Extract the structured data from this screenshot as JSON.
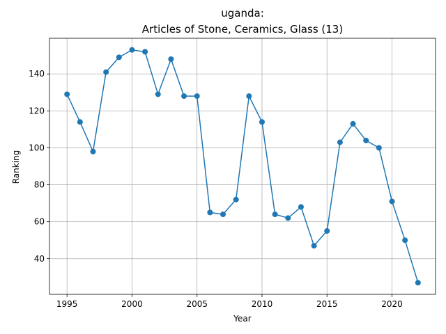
{
  "chart_data": {
    "type": "line",
    "title_line1": "uganda:",
    "title_line2": "Articles of Stone, Ceramics, Glass (13)",
    "xlabel": "Year",
    "ylabel": "Ranking",
    "xlim": [
      1993.65,
      2023.35
    ],
    "ylim": [
      20.7,
      159.3
    ],
    "xticks": [
      1995,
      2000,
      2005,
      2010,
      2015,
      2020
    ],
    "yticks": [
      40,
      60,
      80,
      100,
      120,
      140
    ],
    "grid": true,
    "line_color": "#1f77b4",
    "x": [
      1995,
      1996,
      1997,
      1998,
      1999,
      2000,
      2001,
      2002,
      2003,
      2004,
      2005,
      2006,
      2007,
      2008,
      2009,
      2010,
      2011,
      2012,
      2013,
      2014,
      2015,
      2016,
      2017,
      2018,
      2019,
      2020,
      2021,
      2022
    ],
    "y": [
      129,
      114,
      98,
      141,
      149,
      153,
      152,
      129,
      148,
      128,
      128,
      65,
      64,
      72,
      128,
      114,
      64,
      62,
      68,
      47,
      55,
      103,
      113,
      104,
      100,
      71,
      50,
      27
    ]
  }
}
